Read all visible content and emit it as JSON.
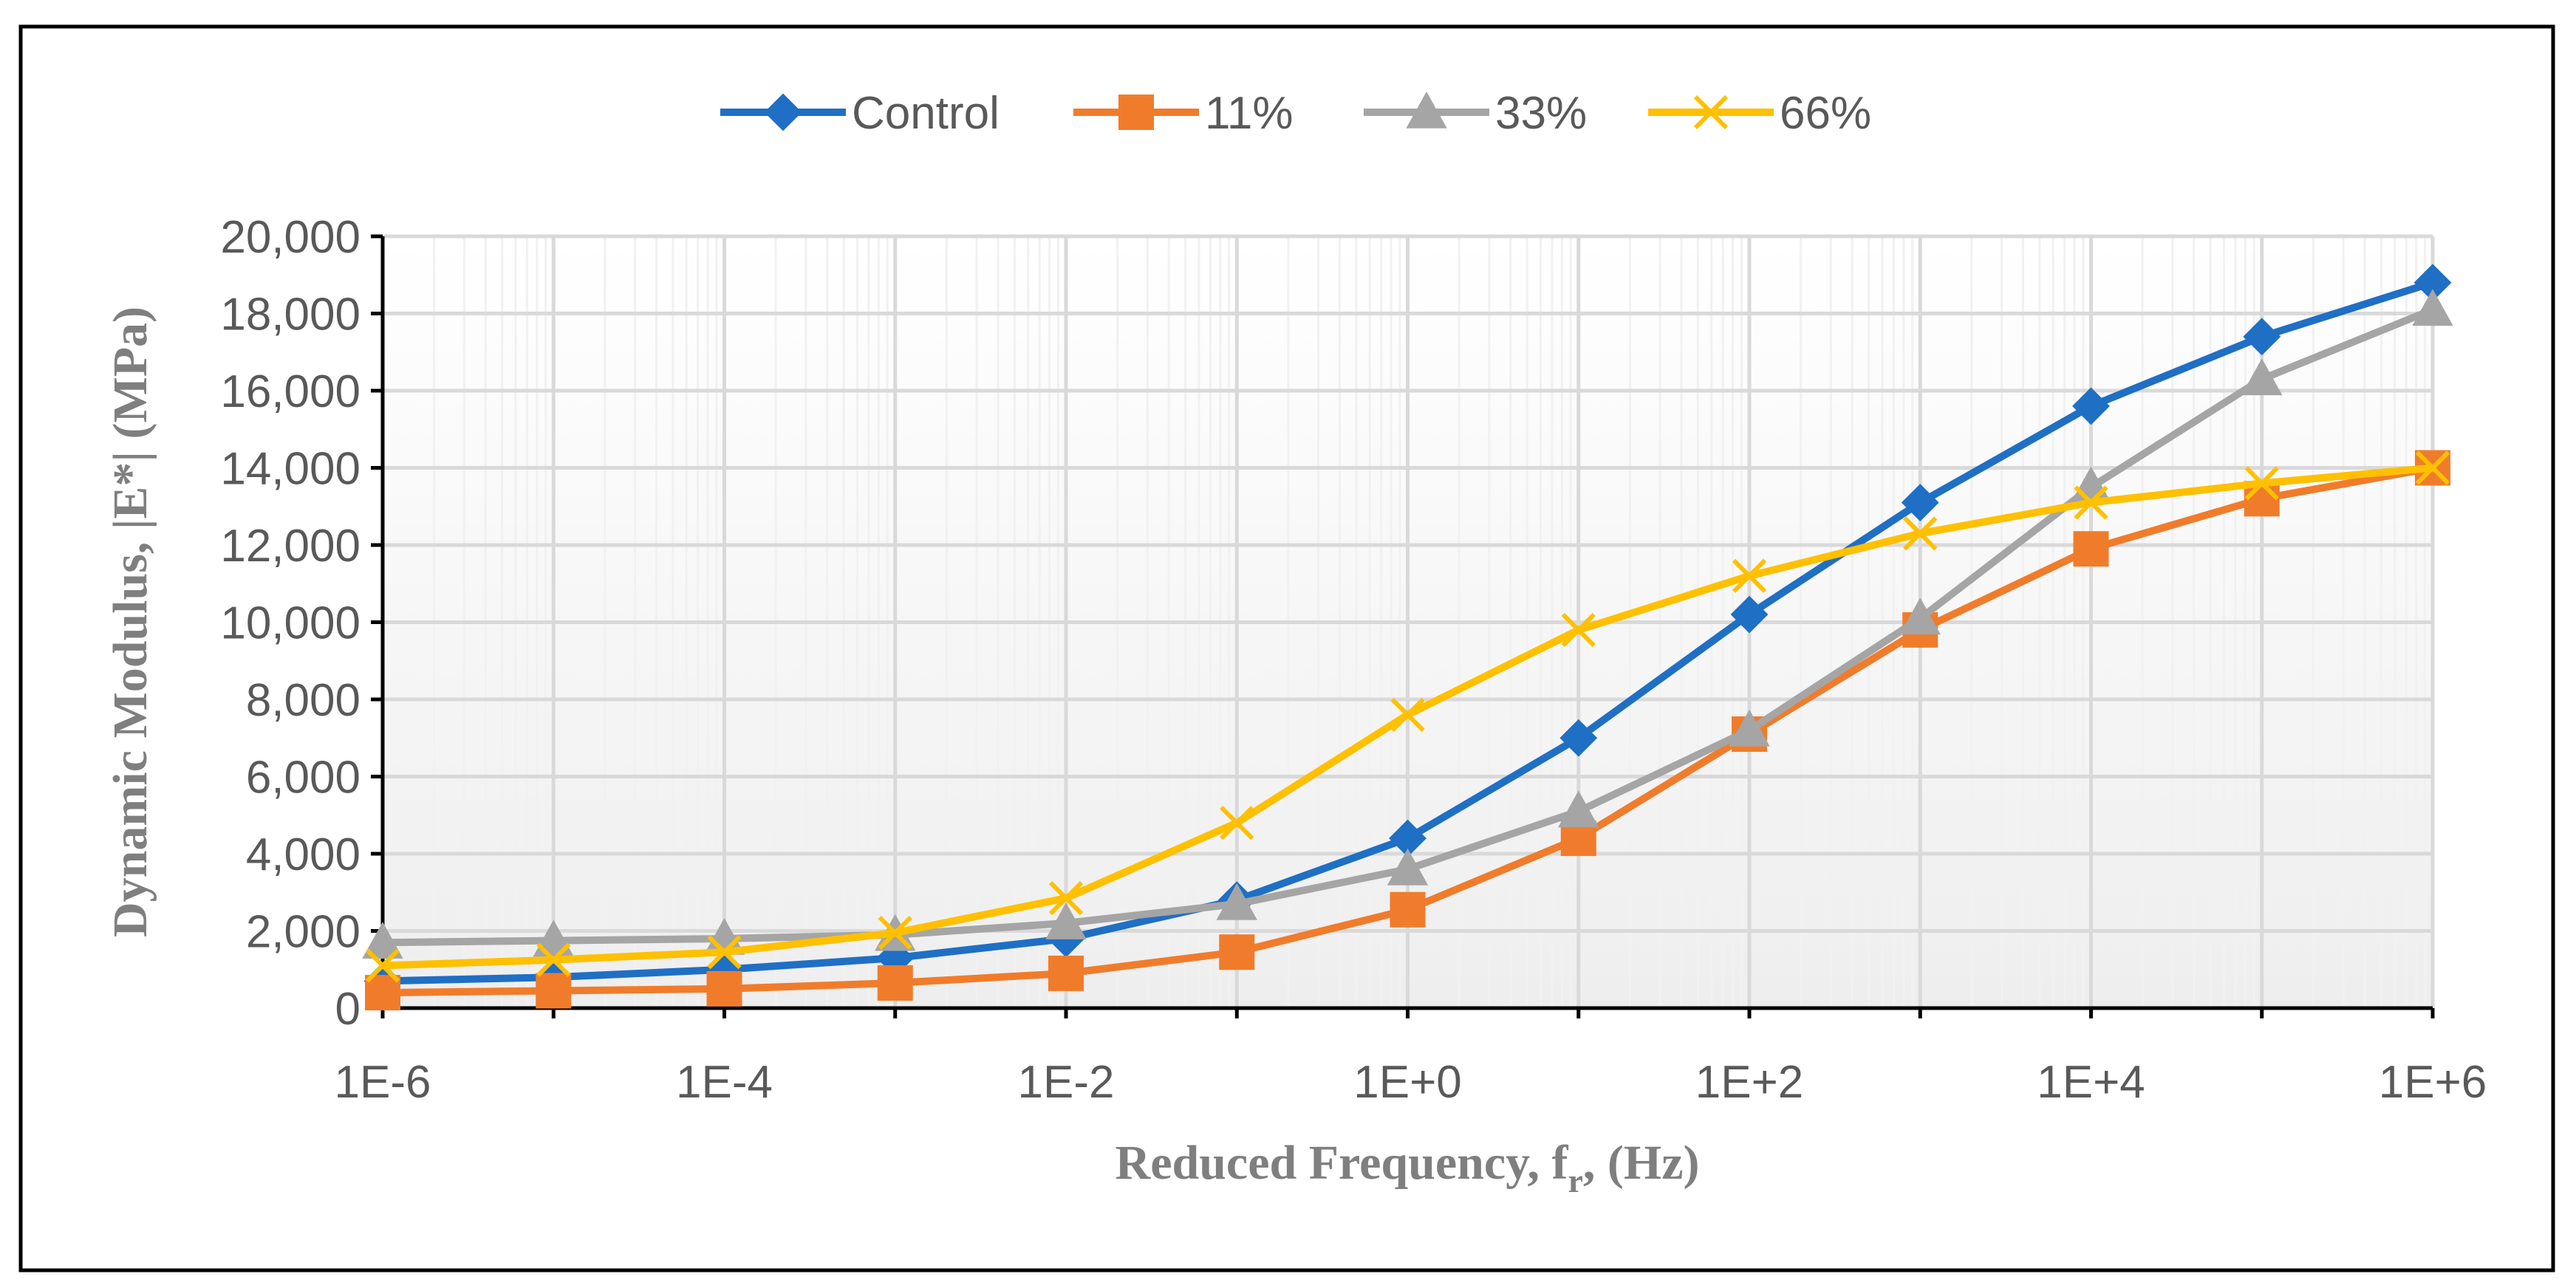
{
  "chart_data": {
    "type": "line",
    "xscale": "log",
    "x": [
      1e-06,
      1e-05,
      0.0001,
      0.001,
      0.01,
      0.1,
      1,
      10,
      100,
      1000,
      10000,
      100000,
      1000000
    ],
    "series": [
      {
        "name": "Control",
        "color": "#1f6fc5",
        "marker": "diamond",
        "values": [
          700,
          800,
          1000,
          1300,
          1800,
          2800,
          4400,
          7000,
          10200,
          13100,
          15600,
          17400,
          18800
        ]
      },
      {
        "name": "11%",
        "color": "#f07c2b",
        "marker": "square",
        "values": [
          400,
          450,
          500,
          650,
          900,
          1450,
          2550,
          4400,
          7100,
          9800,
          11900,
          13200,
          14000
        ]
      },
      {
        "name": "33%",
        "color": "#a5a5a5",
        "marker": "triangle",
        "values": [
          1700,
          1750,
          1800,
          1900,
          2200,
          2700,
          3600,
          5100,
          7200,
          10100,
          13500,
          16300,
          18100
        ]
      },
      {
        "name": "66%",
        "color": "#ffc000",
        "marker": "x",
        "values": [
          1100,
          1250,
          1450,
          1950,
          2850,
          4800,
          7600,
          9800,
          11200,
          12300,
          13100,
          13600,
          14000
        ]
      }
    ],
    "xticks": [
      "1E-6",
      "1E-4",
      "1E-2",
      "1E+0",
      "1E+2",
      "1E+4",
      "1E+6"
    ],
    "yticks": [
      "0",
      "2,000",
      "4,000",
      "6,000",
      "8,000",
      "10,000",
      "12,000",
      "14,000",
      "16,000",
      "18,000",
      "20,000"
    ],
    "ylim": [
      0,
      20000
    ],
    "xlim": [
      1e-06,
      1000000.0
    ],
    "xlabel": {
      "main": "Reduced Frequency, f",
      "sub": "r",
      "tail": ", (Hz)"
    },
    "ylabel": "Dynamic Modulus, |E*|  (MPa)",
    "legend_position": "top-center",
    "grid": true
  }
}
